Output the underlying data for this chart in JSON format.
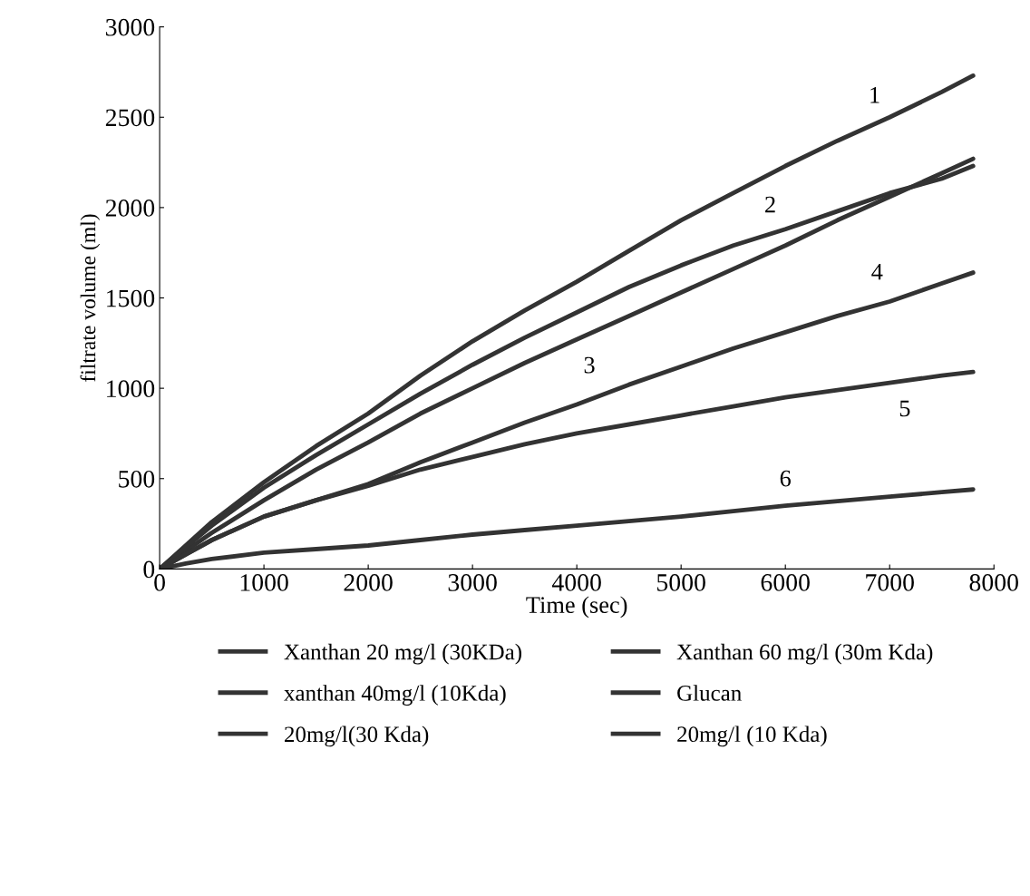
{
  "chart_data": {
    "type": "line",
    "xlabel": "Time (sec)",
    "ylabel": "filtrate volume (ml)",
    "xlim": [
      0,
      8000
    ],
    "xticks": [
      0,
      1000,
      2000,
      3000,
      4000,
      5000,
      6000,
      7000,
      8000
    ],
    "ylim": [
      0,
      3000
    ],
    "yticks": [
      0,
      500,
      1000,
      1500,
      2000,
      2500,
      3000
    ],
    "x": [
      0,
      250,
      500,
      1000,
      1500,
      2000,
      2500,
      3000,
      3500,
      4000,
      4500,
      5000,
      5500,
      6000,
      6500,
      7000,
      7500,
      7800
    ],
    "grid": false,
    "legend": "bottom",
    "line_style": "solid",
    "series": [
      {
        "name": "Xanthan 20 mg/l (30KDa)",
        "color": "#333333",
        "values": [
          0,
          130,
          260,
          480,
          680,
          860,
          1070,
          1260,
          1430,
          1590,
          1760,
          1930,
          2080,
          2230,
          2370,
          2500,
          2640,
          2730
        ]
      },
      {
        "name": "Xanthan 60 mg/l (30m Kda)",
        "color": "#333333",
        "values": [
          0,
          100,
          200,
          380,
          550,
          700,
          860,
          1000,
          1140,
          1270,
          1400,
          1530,
          1660,
          1790,
          1930,
          2060,
          2190,
          2270
        ]
      },
      {
        "name": "xanthan 40mg/l (10Kda)",
        "color": "#333333",
        "values": [
          0,
          80,
          160,
          290,
          380,
          470,
          590,
          700,
          810,
          910,
          1020,
          1120,
          1220,
          1310,
          1400,
          1480,
          1580,
          1640
        ]
      },
      {
        "name": "Glucan",
        "color": "#333333",
        "values": [
          0,
          120,
          240,
          450,
          630,
          800,
          970,
          1130,
          1280,
          1420,
          1560,
          1680,
          1790,
          1880,
          1980,
          2080,
          2160,
          2230
        ]
      },
      {
        "name": "20mg/l(30 Kda)",
        "color": "#333333",
        "values": [
          0,
          80,
          160,
          290,
          380,
          460,
          550,
          620,
          690,
          750,
          800,
          850,
          900,
          950,
          990,
          1030,
          1070,
          1090
        ]
      },
      {
        "name": "20mg/l (10 Kda)",
        "color": "#333333",
        "values": [
          0,
          30,
          55,
          90,
          110,
          130,
          160,
          190,
          215,
          240,
          265,
          290,
          320,
          350,
          375,
          400,
          425,
          440
        ]
      }
    ],
    "annotations": [
      {
        "text": "1",
        "x": 7000,
        "y": 2500
      },
      {
        "text": "2",
        "x": 6000,
        "y": 1880
      },
      {
        "text": "3",
        "x": 4000,
        "y": 1270
      },
      {
        "text": "4",
        "x": 7000,
        "y": 1480
      },
      {
        "text": "5",
        "x": 7000,
        "y": 1030
      },
      {
        "text": "6",
        "x": 6000,
        "y": 350
      }
    ]
  }
}
